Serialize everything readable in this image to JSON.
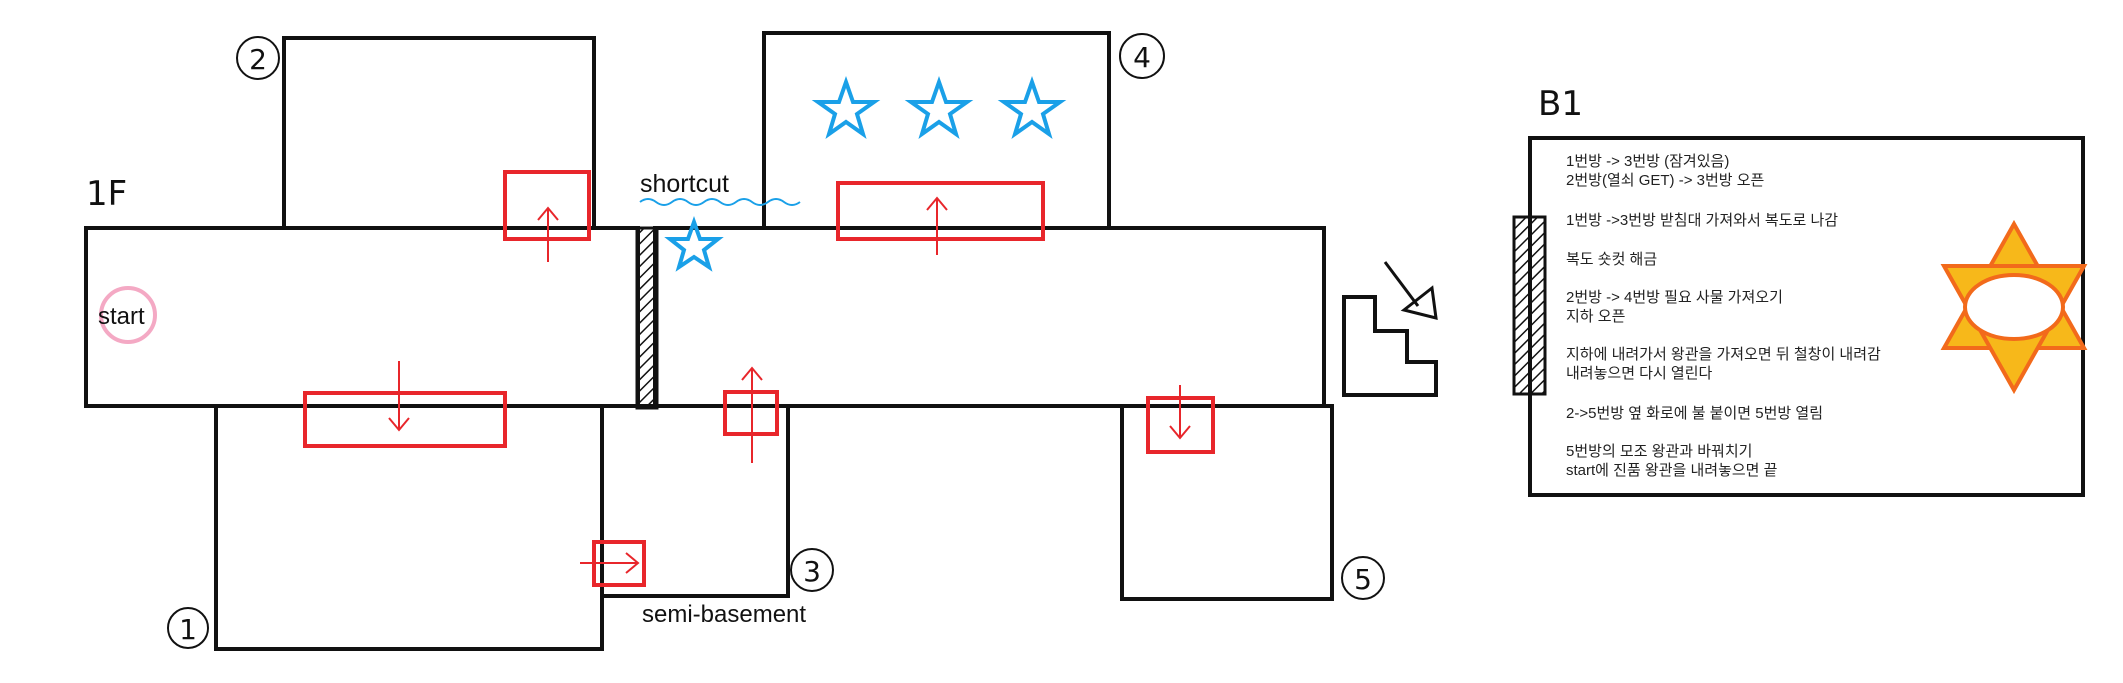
{
  "floor_label": "1F",
  "basement_label": "B1",
  "start_label": "start",
  "shortcut_label": "shortcut",
  "semi_basement_label": "semi-basement",
  "room_numbers": [
    "1",
    "2",
    "3",
    "4",
    "5"
  ],
  "notes": [
    "1번방 -> 3번방 (잠겨있음)",
    "2번방(열쇠 GET) -> 3번방 오픈",
    "1번방 ->3번방 받침대 가져와서 복도로 나감",
    "복도 숏컷 해금",
    "2번방 -> 4번방 필요 사물 가져오기",
    "지하 오픈",
    "지하에 내려가서 왕관을 가져오면 뒤 철창이 내려감",
    "내려놓으면 다시 열린다",
    "2->5번방 옆 화로에 불 붙이면 5번방 열림",
    "5번방의 모조 왕관과 바꿔치기",
    "start에 진품 왕관을 내려놓으면 끝"
  ],
  "colors": {
    "walls": "#111111",
    "door_marker": "#e8262b",
    "star": "#1aa0e8",
    "sun_fill": "#f7b81a",
    "sun_outline": "#f26a1b",
    "start_circle": "#f4a9c4"
  },
  "icons": [
    "star-icon",
    "sun-icon",
    "stairs-icon",
    "gate-icon",
    "arrow-icon"
  ]
}
